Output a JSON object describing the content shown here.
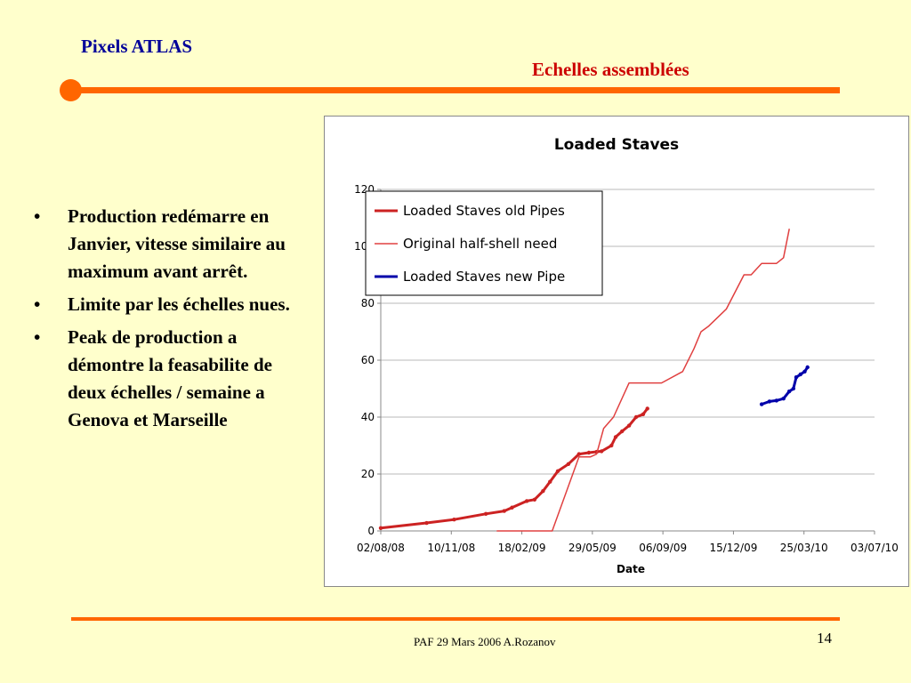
{
  "header": {
    "left_title": "Pixels ATLAS",
    "right_title": "Echelles assemblées"
  },
  "bullets": [
    "Production redémarre en Janvier, vitesse similaire au maximum avant arrêt.",
    "Limite par les échelles nues.",
    "Peak de production a démontre la feasabilite de deux échelles / semaine a Genova et Marseille"
  ],
  "bullet_symbol": "•",
  "footer": {
    "text": "PAF  29 Mars  2006 A.Rozanov",
    "page": "14"
  },
  "colors": {
    "background": "#FFFFCC",
    "accent": "#FF6600",
    "title_blue": "#000099",
    "title_red": "#CC0000",
    "series_old": "#CC2222",
    "series_need": "#E04040",
    "series_new": "#0000AA"
  },
  "chart_data": {
    "type": "line",
    "title": "Loaded Staves",
    "xlabel": "Date",
    "ylabel": "",
    "ylim": [
      0,
      120
    ],
    "yticks": [
      0,
      20,
      40,
      60,
      80,
      100,
      120
    ],
    "xlim": [
      "2008-08-02",
      "2010-07-03"
    ],
    "xticks": [
      "2008-08-02",
      "2008-11-10",
      "2009-02-18",
      "2009-05-29",
      "2009-09-06",
      "2009-12-15",
      "2010-03-25",
      "2010-07-03"
    ],
    "xtick_labels": [
      "02/08/08",
      "10/11/08",
      "18/02/09",
      "29/05/09",
      "06/09/09",
      "15/12/09",
      "25/03/10",
      "03/07/10"
    ],
    "grid": true,
    "legend": "top-left",
    "series": [
      {
        "name": "Loaded Staves old Pipes",
        "style": "thick",
        "x": [
          "2008-08-02",
          "2008-10-06",
          "2008-11-14",
          "2008-12-29",
          "2009-01-24",
          "2009-02-04",
          "2009-02-25",
          "2009-03-08",
          "2009-03-20",
          "2009-03-30",
          "2009-04-10",
          "2009-04-25",
          "2009-05-10",
          "2009-05-24",
          "2009-06-04",
          "2009-06-11",
          "2009-06-25",
          "2009-07-01",
          "2009-07-10",
          "2009-07-20",
          "2009-07-30",
          "2009-08-09",
          "2009-08-15"
        ],
        "y": [
          1,
          2.8,
          4,
          6,
          7,
          8.2,
          10.5,
          11,
          14,
          17.3,
          21,
          23.5,
          27,
          27.5,
          27.8,
          28,
          30,
          33,
          35,
          37,
          40,
          41,
          43
        ]
      },
      {
        "name": "Original half-shell need",
        "style": "thin",
        "x": [
          "2009-01-14",
          "2009-04-02",
          "2009-05-10",
          "2009-05-26",
          "2009-06-04",
          "2009-06-14",
          "2009-06-28",
          "2009-07-20",
          "2009-09-04",
          "2009-10-04",
          "2009-10-20",
          "2009-10-30",
          "2009-11-10",
          "2009-12-05",
          "2009-12-30",
          "2010-01-09",
          "2010-01-24",
          "2010-02-04",
          "2010-02-14",
          "2010-02-24",
          "2010-03-04"
        ],
        "y": [
          0,
          0,
          26,
          26,
          27,
          36,
          40,
          52,
          52,
          56,
          64,
          70,
          72,
          78,
          90,
          90,
          94,
          94,
          94,
          96,
          106
        ]
      },
      {
        "name": "Loaded Staves new Pipe",
        "style": "thick",
        "x": [
          "2010-01-24",
          "2010-02-04",
          "2010-02-14",
          "2010-02-24",
          "2010-03-04",
          "2010-03-10",
          "2010-03-14",
          "2010-03-20",
          "2010-03-26",
          "2010-03-30"
        ],
        "y": [
          44.5,
          45.5,
          45.8,
          46.5,
          49,
          50,
          54,
          55,
          56,
          57.5
        ]
      }
    ]
  }
}
